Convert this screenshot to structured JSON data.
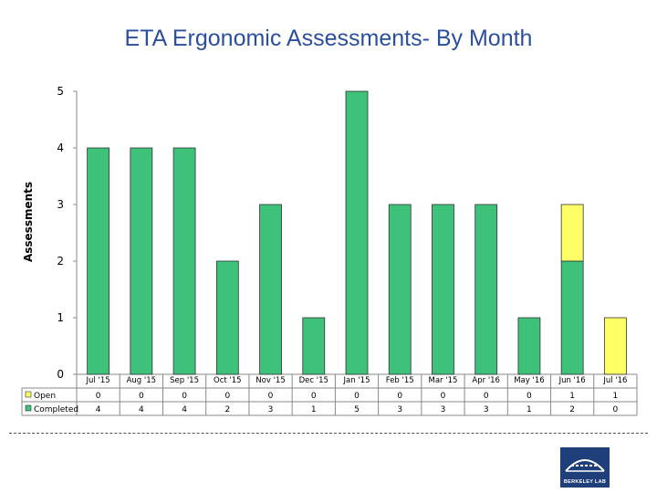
{
  "title": "ETA Ergonomic Assessments- By Month",
  "logo_text": "BERKELEY LAB",
  "colors": {
    "open": "#ffff66",
    "completed": "#3ec27a",
    "title": "#2b4f9e"
  },
  "chart_data": {
    "type": "bar",
    "stacked": true,
    "title": "ETA Ergonomic Assessments- By Month",
    "xlabel": "",
    "ylabel": "Assessments",
    "ylim": [
      0,
      5
    ],
    "yticks": [
      0,
      1,
      2,
      3,
      4,
      5
    ],
    "grid": false,
    "legend": "table-left",
    "data_table": true,
    "categories": [
      "Jul '15",
      "Aug '15",
      "Sep '15",
      "Oct '15",
      "Nov '15",
      "Dec '15",
      "Jan '15",
      "Feb '15",
      "Mar '15",
      "Apr '16",
      "May '16",
      "Jun '16",
      "Jul '16"
    ],
    "series": [
      {
        "name": "Open",
        "values": [
          0,
          0,
          0,
          0,
          0,
          0,
          0,
          0,
          0,
          0,
          0,
          1,
          1
        ]
      },
      {
        "name": "Completed",
        "values": [
          4,
          4,
          4,
          2,
          3,
          1,
          5,
          3,
          3,
          3,
          1,
          2,
          0
        ]
      }
    ]
  }
}
